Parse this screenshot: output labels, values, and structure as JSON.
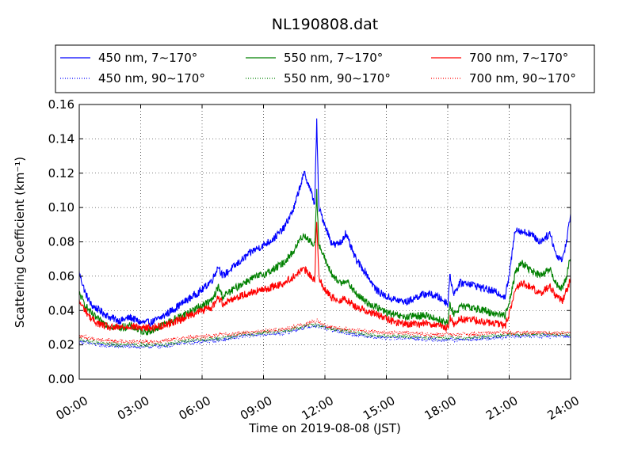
{
  "chart_data": {
    "type": "line",
    "title": "NL190808.dat",
    "xlabel": "Time on 2019-08-08 (JST)",
    "ylabel": "Scattering Coefficient (km⁻¹)",
    "xlim": [
      0,
      24
    ],
    "ylim": [
      0,
      0.16
    ],
    "grid": true,
    "legend_position": "top",
    "xticks": [
      {
        "value": 0,
        "label": "00:00"
      },
      {
        "value": 3,
        "label": "03:00"
      },
      {
        "value": 6,
        "label": "06:00"
      },
      {
        "value": 9,
        "label": "09:00"
      },
      {
        "value": 12,
        "label": "12:00"
      },
      {
        "value": 15,
        "label": "15:00"
      },
      {
        "value": 18,
        "label": "18:00"
      },
      {
        "value": 21,
        "label": "21:00"
      },
      {
        "value": 24,
        "label": "24:00"
      }
    ],
    "yticks": [
      {
        "value": 0,
        "label": "0.00"
      },
      {
        "value": 0.02,
        "label": "0.02"
      },
      {
        "value": 0.04,
        "label": "0.04"
      },
      {
        "value": 0.06,
        "label": "0.06"
      },
      {
        "value": 0.08,
        "label": "0.08"
      },
      {
        "value": 0.1,
        "label": "0.10"
      },
      {
        "value": 0.12,
        "label": "0.12"
      },
      {
        "value": 0.14,
        "label": "0.14"
      },
      {
        "value": 0.16,
        "label": "0.16"
      }
    ],
    "series": [
      {
        "name": "450 nm, 7∼170°",
        "color": "#0000ff",
        "style": "solid",
        "x": [
          0,
          0.3,
          0.6,
          1,
          1.5,
          2,
          2.5,
          3,
          3.5,
          4,
          4.5,
          5,
          5.5,
          6,
          6.5,
          6.8,
          7,
          7.5,
          8,
          8.5,
          9,
          9.5,
          10,
          10.5,
          10.8,
          11,
          11.3,
          11.5,
          11.6,
          11.7,
          12,
          12.3,
          12.5,
          12.8,
          13,
          13.5,
          14,
          14.5,
          15,
          15.5,
          16,
          16.5,
          17,
          17.5,
          17.9,
          18,
          18.1,
          18.3,
          18.6,
          19,
          19.5,
          20,
          20.5,
          20.8,
          21,
          21.3,
          21.6,
          22,
          22.5,
          23,
          23.3,
          23.6,
          23.8,
          24
        ],
        "values": [
          0.062,
          0.05,
          0.043,
          0.04,
          0.036,
          0.034,
          0.036,
          0.033,
          0.033,
          0.036,
          0.04,
          0.044,
          0.048,
          0.052,
          0.058,
          0.066,
          0.06,
          0.065,
          0.07,
          0.075,
          0.078,
          0.082,
          0.088,
          0.1,
          0.113,
          0.12,
          0.11,
          0.102,
          0.15,
          0.1,
          0.09,
          0.08,
          0.078,
          0.08,
          0.085,
          0.07,
          0.062,
          0.052,
          0.048,
          0.046,
          0.045,
          0.048,
          0.05,
          0.048,
          0.045,
          0.044,
          0.06,
          0.05,
          0.056,
          0.056,
          0.054,
          0.052,
          0.05,
          0.048,
          0.06,
          0.088,
          0.086,
          0.085,
          0.08,
          0.085,
          0.072,
          0.07,
          0.08,
          0.097
        ]
      },
      {
        "name": "450 nm, 90∼170°",
        "color": "#0000ff",
        "style": "dotted",
        "x": [
          0,
          1,
          2,
          3,
          4,
          5,
          6,
          7,
          8,
          9,
          10,
          11,
          11.6,
          12,
          13,
          14,
          15,
          16,
          17,
          18,
          19,
          20,
          21,
          22,
          23,
          24
        ],
        "values": [
          0.022,
          0.02,
          0.019,
          0.019,
          0.019,
          0.021,
          0.022,
          0.023,
          0.025,
          0.026,
          0.027,
          0.03,
          0.031,
          0.03,
          0.027,
          0.025,
          0.024,
          0.024,
          0.023,
          0.023,
          0.023,
          0.024,
          0.025,
          0.025,
          0.025,
          0.025
        ]
      },
      {
        "name": "550 nm, 7∼170°",
        "color": "#008000",
        "style": "solid",
        "x": [
          0,
          0.3,
          0.6,
          1,
          1.5,
          2,
          2.5,
          3,
          3.5,
          4,
          4.5,
          5,
          5.5,
          6,
          6.5,
          6.8,
          7,
          7.5,
          8,
          8.5,
          9,
          9.5,
          10,
          10.5,
          10.8,
          11,
          11.3,
          11.5,
          11.6,
          11.7,
          12,
          12.3,
          12.5,
          12.8,
          13,
          13.5,
          14,
          14.5,
          15,
          15.5,
          16,
          16.5,
          17,
          17.5,
          17.9,
          18,
          18.1,
          18.3,
          18.6,
          19,
          19.5,
          20,
          20.5,
          20.8,
          21,
          21.3,
          21.6,
          22,
          22.5,
          23,
          23.3,
          23.6,
          23.8,
          24
        ],
        "values": [
          0.05,
          0.043,
          0.038,
          0.034,
          0.031,
          0.03,
          0.031,
          0.028,
          0.028,
          0.031,
          0.034,
          0.037,
          0.04,
          0.043,
          0.046,
          0.054,
          0.048,
          0.052,
          0.056,
          0.059,
          0.061,
          0.064,
          0.068,
          0.075,
          0.082,
          0.084,
          0.08,
          0.078,
          0.11,
          0.078,
          0.07,
          0.062,
          0.058,
          0.056,
          0.058,
          0.05,
          0.045,
          0.042,
          0.039,
          0.037,
          0.036,
          0.037,
          0.037,
          0.035,
          0.033,
          0.033,
          0.043,
          0.038,
          0.042,
          0.042,
          0.041,
          0.039,
          0.038,
          0.037,
          0.045,
          0.062,
          0.068,
          0.064,
          0.06,
          0.064,
          0.055,
          0.053,
          0.06,
          0.072
        ]
      },
      {
        "name": "550 nm, 90∼170°",
        "color": "#008000",
        "style": "dotted",
        "x": [
          0,
          1,
          2,
          3,
          4,
          5,
          6,
          7,
          8,
          9,
          10,
          11,
          11.6,
          12,
          13,
          14,
          15,
          16,
          17,
          18,
          19,
          20,
          21,
          22,
          23,
          24
        ],
        "values": [
          0.023,
          0.021,
          0.02,
          0.02,
          0.02,
          0.022,
          0.023,
          0.024,
          0.026,
          0.027,
          0.028,
          0.031,
          0.032,
          0.03,
          0.028,
          0.026,
          0.025,
          0.025,
          0.024,
          0.024,
          0.024,
          0.025,
          0.026,
          0.026,
          0.026,
          0.026
        ]
      },
      {
        "name": "700 nm, 7∼170°",
        "color": "#ff0000",
        "style": "solid",
        "x": [
          0,
          0.3,
          0.6,
          1,
          1.5,
          2,
          2.5,
          3,
          3.5,
          4,
          4.5,
          5,
          5.5,
          6,
          6.5,
          6.8,
          7,
          7.5,
          8,
          8.5,
          9,
          9.5,
          10,
          10.5,
          10.8,
          11,
          11.3,
          11.5,
          11.6,
          11.7,
          12,
          12.3,
          12.5,
          12.8,
          13,
          13.5,
          14,
          14.5,
          15,
          15.5,
          16,
          16.5,
          17,
          17.5,
          17.9,
          18,
          18.1,
          18.3,
          18.6,
          19,
          19.5,
          20,
          20.5,
          20.8,
          21,
          21.3,
          21.6,
          22,
          22.5,
          23,
          23.3,
          23.6,
          23.8,
          24
        ],
        "values": [
          0.045,
          0.04,
          0.035,
          0.032,
          0.03,
          0.03,
          0.031,
          0.03,
          0.03,
          0.031,
          0.033,
          0.035,
          0.038,
          0.04,
          0.042,
          0.048,
          0.044,
          0.047,
          0.049,
          0.051,
          0.052,
          0.054,
          0.056,
          0.06,
          0.063,
          0.064,
          0.06,
          0.058,
          0.092,
          0.06,
          0.052,
          0.048,
          0.047,
          0.046,
          0.047,
          0.042,
          0.04,
          0.038,
          0.035,
          0.033,
          0.032,
          0.032,
          0.033,
          0.031,
          0.03,
          0.03,
          0.036,
          0.032,
          0.035,
          0.035,
          0.034,
          0.033,
          0.032,
          0.031,
          0.038,
          0.052,
          0.056,
          0.054,
          0.05,
          0.054,
          0.048,
          0.046,
          0.052,
          0.058
        ]
      },
      {
        "name": "700 nm, 90∼170°",
        "color": "#ff0000",
        "style": "dotted",
        "x": [
          0,
          1,
          2,
          3,
          4,
          5,
          6,
          7,
          8,
          9,
          10,
          11,
          11.6,
          12,
          13,
          14,
          15,
          16,
          17,
          18,
          19,
          20,
          21,
          22,
          23,
          24
        ],
        "values": [
          0.025,
          0.023,
          0.022,
          0.022,
          0.022,
          0.024,
          0.025,
          0.026,
          0.027,
          0.028,
          0.029,
          0.032,
          0.034,
          0.031,
          0.029,
          0.028,
          0.027,
          0.027,
          0.026,
          0.026,
          0.026,
          0.027,
          0.027,
          0.027,
          0.027,
          0.027
        ]
      }
    ]
  }
}
